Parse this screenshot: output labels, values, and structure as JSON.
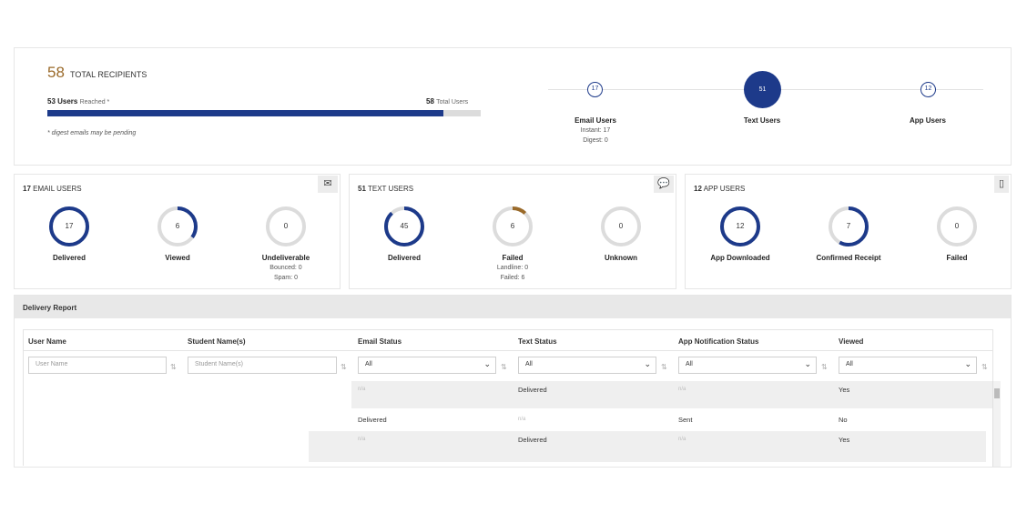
{
  "summary": {
    "total_count": "58",
    "total_label": "TOTAL RECIPIENTS",
    "reached_count": "53 Users",
    "reached_suffix": "Reached *",
    "total_users_count": "58",
    "total_users_label": "Total Users",
    "reached_fraction": 0.914,
    "note": "* digest emails may be pending",
    "nodes": [
      {
        "value": "17",
        "label": "Email Users",
        "sub1": "Instant: 17",
        "sub2": "Digest: 0"
      },
      {
        "value": "51",
        "label": "Text Users"
      },
      {
        "value": "12",
        "label": "App Users"
      }
    ]
  },
  "email_card": {
    "count": "17",
    "title": "EMAIL USERS",
    "icon": "envelope-icon",
    "donuts": [
      {
        "value": "17",
        "label": "Delivered",
        "fraction": 1.0,
        "color": "#1d3a8a"
      },
      {
        "value": "6",
        "label": "Viewed",
        "fraction": 0.35,
        "color": "#1d3a8a"
      },
      {
        "value": "0",
        "label": "Undeliverable",
        "fraction": 0,
        "color": "#1d3a8a",
        "sub1": "Bounced: 0",
        "sub2": "Spam: 0"
      }
    ]
  },
  "text_card": {
    "count": "51",
    "title": "TEXT USERS",
    "icon": "chat-bubble-icon",
    "donuts": [
      {
        "value": "45",
        "label": "Delivered",
        "fraction": 0.88,
        "color": "#1d3a8a"
      },
      {
        "value": "6",
        "label": "Failed",
        "fraction": 0.12,
        "color": "#9a6a2a",
        "sub1": "Landline: 0",
        "sub2": "Failed: 6"
      },
      {
        "value": "0",
        "label": "Unknown",
        "fraction": 0,
        "color": "#1d3a8a"
      }
    ]
  },
  "app_card": {
    "count": "12",
    "title": "APP USERS",
    "icon": "phone-icon",
    "donuts": [
      {
        "value": "12",
        "label": "App Downloaded",
        "fraction": 1.0,
        "color": "#1d3a8a"
      },
      {
        "value": "7",
        "label": "Confirmed Receipt",
        "fraction": 0.58,
        "color": "#1d3a8a"
      },
      {
        "value": "0",
        "label": "Failed",
        "fraction": 0,
        "color": "#1d3a8a"
      }
    ]
  },
  "report": {
    "title": "Delivery Report",
    "columns": [
      "User Name",
      "Student Name(s)",
      "Email Status",
      "Text Status",
      "App Notification Status",
      "Viewed"
    ],
    "filters": {
      "user_name_placeholder": "User Name",
      "student_placeholder": "Student Name(s)",
      "email_status": "All",
      "text_status": "All",
      "app_status": "All",
      "viewed": "All"
    },
    "rows": [
      {
        "email": "n/a",
        "text": "Delivered",
        "app": "n/a",
        "viewed": "Yes"
      },
      {
        "email": "Delivered",
        "text": "n/a",
        "app": "Sent",
        "viewed": "No"
      },
      {
        "email": "n/a",
        "text": "Delivered",
        "app": "n/a",
        "viewed": "Yes"
      }
    ]
  },
  "colors": {
    "primary": "#1d3a8a",
    "accent": "#9a6a2a",
    "track": "#dcdcdc"
  }
}
